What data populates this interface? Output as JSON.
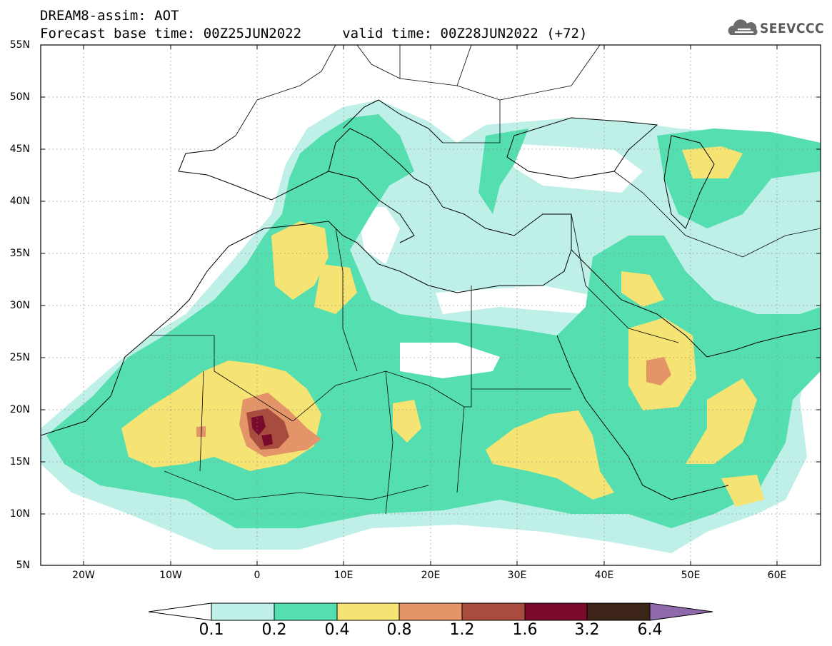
{
  "header": {
    "model_line": "DREAM8-assim: AOT",
    "times_line": "Forecast base time: 00Z25JUN2022     valid time: 00Z28JUN2022 (+72)"
  },
  "logo": {
    "text": "SEEVCCC",
    "icon": "cloud-icon"
  },
  "map": {
    "lon_range": [
      -25,
      65
    ],
    "lat_range": [
      5,
      55
    ],
    "gridlines": "dotted",
    "lat_labels": [
      "55N",
      "50N",
      "45N",
      "40N",
      "35N",
      "30N",
      "25N",
      "20N",
      "15N",
      "10N",
      "5N"
    ],
    "lon_labels": [
      "20W",
      "10W",
      "0",
      "10E",
      "20E",
      "30E",
      "40E",
      "50E",
      "60E"
    ]
  },
  "colorbar": {
    "labels": [
      "0.1",
      "0.2",
      "0.4",
      "0.8",
      "1.2",
      "1.6",
      "3.2",
      "6.4"
    ],
    "colors": [
      "#ffffff",
      "#bff0e8",
      "#55deb0",
      "#f5e373",
      "#e39468",
      "#a84d3e",
      "#7a0a2c",
      "#3c2418",
      "#8f69a9"
    ]
  }
}
